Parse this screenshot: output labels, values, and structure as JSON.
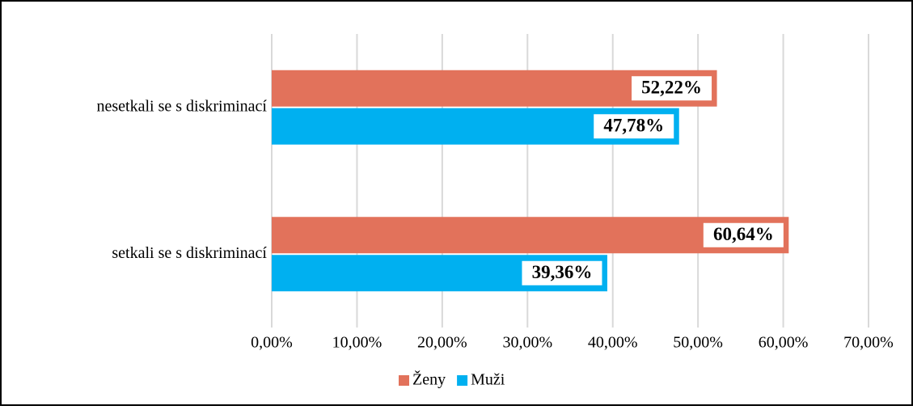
{
  "chart_data": {
    "type": "hbar",
    "categories": [
      "nesetkali se s diskriminací",
      "setkali se s diskriminací"
    ],
    "series": [
      {
        "name": "Ženy",
        "color": "#E2725B",
        "values": [
          52.22,
          60.64
        ],
        "value_labels": [
          "52,22%",
          "60,64%"
        ]
      },
      {
        "name": "Muži",
        "color": "#00B0F0",
        "values": [
          47.78,
          39.36
        ],
        "value_labels": [
          "47,78%",
          "39,36%"
        ]
      }
    ],
    "xlim": [
      0,
      70
    ],
    "xticks": [
      {
        "value": 0,
        "label": "0,00%"
      },
      {
        "value": 10,
        "label": "10,00%"
      },
      {
        "value": 20,
        "label": "20,00%"
      },
      {
        "value": 30,
        "label": "30,00%"
      },
      {
        "value": 40,
        "label": "40,00%"
      },
      {
        "value": 50,
        "label": "50,00%"
      },
      {
        "value": 60,
        "label": "60,00%"
      },
      {
        "value": 70,
        "label": "70,00%"
      }
    ],
    "grid": true,
    "legend": "bottom"
  }
}
